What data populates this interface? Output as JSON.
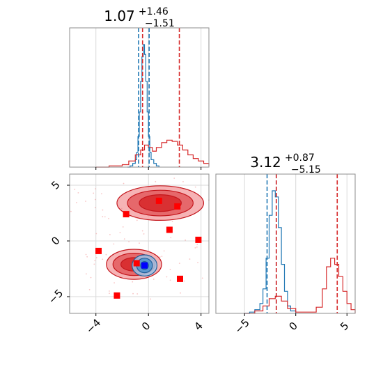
{
  "chart_data": [
    {
      "panel": "x-marginal",
      "type": "histogram",
      "title": {
        "value": "1.07",
        "plus": "+1.46",
        "minus": "−1.51"
      },
      "xlim": [
        -6,
        4.6
      ],
      "grid": true,
      "series": [
        {
          "color": "#1f77b4",
          "x": [
            -1.6,
            -1.4,
            -1.2,
            -1.0,
            -0.9,
            -0.8,
            -0.7,
            -0.6,
            -0.5,
            -0.4,
            -0.3,
            -0.2,
            -0.1,
            0.0,
            0.1,
            0.2,
            0.4,
            0.6,
            0.8
          ],
          "values": [
            0,
            0.01,
            0.03,
            0.06,
            0.12,
            0.25,
            0.45,
            0.7,
            0.9,
            1.0,
            0.92,
            0.7,
            0.45,
            0.25,
            0.12,
            0.06,
            0.03,
            0.01,
            0
          ]
        },
        {
          "color": "#d62728",
          "x": [
            -4,
            -3,
            -2,
            -1.5,
            -1,
            -0.6,
            -0.3,
            0,
            0.3,
            0.6,
            1,
            1.4,
            1.8,
            2.2,
            2.6,
            3,
            3.4,
            3.8,
            4.2,
            4.6
          ],
          "values": [
            0,
            0.01,
            0.02,
            0.05,
            0.1,
            0.14,
            0.18,
            0.16,
            0.13,
            0.16,
            0.2,
            0.22,
            0.21,
            0.18,
            0.14,
            0.1,
            0.07,
            0.05,
            0.03,
            0.01
          ]
        }
      ],
      "lines": [
        {
          "color": "#1f77b4",
          "x": [
            -0.75,
            0.05
          ]
        },
        {
          "color": "#d62728",
          "x": [
            -0.45,
            2.35
          ]
        }
      ]
    },
    {
      "panel": "y-marginal",
      "type": "histogram",
      "title": {
        "value": "3.12",
        "plus": "+0.87",
        "minus": "−5.15"
      },
      "xlim": [
        -7.8,
        5.8
      ],
      "xticks": [
        -5,
        0,
        5
      ],
      "xtick_labels": [
        "−5",
        "0",
        "5"
      ],
      "grid": true,
      "series": [
        {
          "color": "#1f77b4",
          "x": [
            -5,
            -4.5,
            -4,
            -3.5,
            -3.2,
            -2.9,
            -2.6,
            -2.3,
            -2.0,
            -1.7,
            -1.4,
            -1.1,
            -0.8,
            -0.5,
            0
          ],
          "values": [
            0,
            0.01,
            0.03,
            0.08,
            0.2,
            0.45,
            0.8,
            1.0,
            0.95,
            0.7,
            0.4,
            0.18,
            0.06,
            0.02,
            0
          ]
        },
        {
          "color": "#d62728",
          "x": [
            -5,
            -4,
            -3.2,
            -2.6,
            -2.0,
            -1.4,
            -0.8,
            0,
            1,
            2,
            2.6,
            3.0,
            3.4,
            3.8,
            4.2,
            4.6,
            5.0,
            5.4,
            5.8
          ],
          "values": [
            0,
            0.02,
            0.06,
            0.12,
            0.14,
            0.1,
            0.04,
            0.01,
            0.01,
            0.05,
            0.2,
            0.38,
            0.45,
            0.4,
            0.3,
            0.18,
            0.08,
            0.03,
            0
          ]
        }
      ],
      "lines": [
        {
          "color": "#1f77b4",
          "x": [
            -2.8,
            -1.9
          ]
        },
        {
          "color": "#d62728",
          "x": [
            -1.9,
            4.05
          ]
        }
      ]
    },
    {
      "panel": "joint",
      "type": "scatter",
      "xlim": [
        -6,
        4.6
      ],
      "ylim": [
        -6.5,
        6
      ],
      "xticks": [
        -4,
        0,
        4
      ],
      "xtick_labels": [
        "−4",
        "0",
        "4"
      ],
      "yticks": [
        -5,
        0,
        5
      ],
      "ytick_labels": [
        "−5",
        "0",
        "5"
      ],
      "grid": true,
      "contours": [
        {
          "group": "red-upper",
          "cx": 0.9,
          "cy": 3.4,
          "levels": [
            [
              3.3,
              1.55
            ],
            [
              2.5,
              1.15
            ],
            [
              1.6,
              0.75
            ]
          ]
        },
        {
          "group": "red-lower",
          "cx": -1.1,
          "cy": -2.1,
          "levels": [
            [
              2.1,
              1.35
            ],
            [
              1.6,
              1.0
            ],
            [
              1.0,
              0.6
            ]
          ]
        },
        {
          "group": "blue",
          "cx": -0.3,
          "cy": -2.2,
          "levels": [
            [
              0.95,
              0.95
            ],
            [
              0.6,
              0.65
            ],
            [
              0.3,
              0.35
            ]
          ]
        }
      ],
      "markers": [
        {
          "color": "#ff0000",
          "x": -1.7,
          "y": 2.4
        },
        {
          "color": "#ff0000",
          "x": 0.8,
          "y": 3.6
        },
        {
          "color": "#ff0000",
          "x": 2.2,
          "y": 3.1
        },
        {
          "color": "#ff0000",
          "x": 1.6,
          "y": 1.0
        },
        {
          "color": "#ff0000",
          "x": 3.8,
          "y": 0.1
        },
        {
          "color": "#ff0000",
          "x": -3.8,
          "y": -0.9
        },
        {
          "color": "#ff0000",
          "x": -0.9,
          "y": -2.0
        },
        {
          "color": "#ff0000",
          "x": 2.4,
          "y": -3.4
        },
        {
          "color": "#ff0000",
          "x": -2.4,
          "y": -4.9
        },
        {
          "color": "#0000ff",
          "x": -0.3,
          "y": -2.2
        }
      ]
    }
  ]
}
